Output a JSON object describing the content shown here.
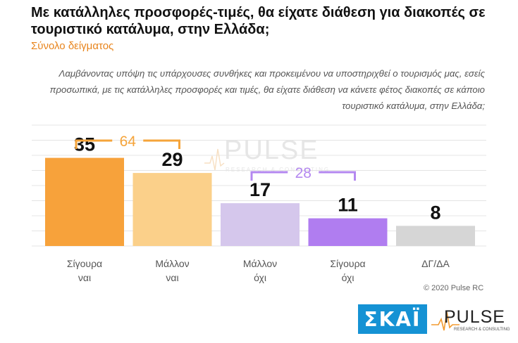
{
  "title": "Με κατάλληλες προσφορές-τιμές, θα είχατε διάθεση για διακοπές σε τουριστικό κατάλυμα, στην Ελλάδα;",
  "subtitle": "Σύνολο δείγματος",
  "question": "Λαμβάνοντας υπόψη τις υπάρχουσες συνθήκες και προκειμένου να υποστηριχθεί ο τουρισμός μας, εσείς προσωπικά, με τις κατάλληλες προσφορές και τιμές, θα είχατε διάθεση να κάνετε φέτος διακοπές σε κάποιο τουριστικό κατάλυμα, στην Ελλάδα;",
  "copyright": "© 2020 Pulse RC",
  "colors": {
    "bars": [
      "#f7a23b",
      "#fbd08a",
      "#d5c7ec",
      "#b07df0",
      "#d6d6d6"
    ],
    "yes_group": "#f5a43a",
    "no_group": "#b488f0"
  },
  "chart_data": {
    "type": "bar",
    "categories": [
      [
        "Σίγουρα",
        "ναι"
      ],
      [
        "Μάλλον",
        "ναι"
      ],
      [
        "Μάλλον",
        "όχι"
      ],
      [
        "Σίγουρα",
        "όχι"
      ],
      [
        "ΔΓ/ΔΑ",
        ""
      ]
    ],
    "values": [
      35,
      29,
      17,
      11,
      8
    ],
    "ylim": [
      0,
      48
    ],
    "grid": true,
    "group_totals": [
      {
        "label": "64",
        "from": 0,
        "to": 1
      },
      {
        "label": "28",
        "from": 2,
        "to": 3
      }
    ]
  },
  "logos": {
    "skai": "ΣΚΑΪ",
    "pulse": "PULSE",
    "pulse_sub": "RESEARCH & CONSULTING",
    "watermark": "PULSE",
    "watermark_sub": "RESEARCH & CONSULTING"
  }
}
